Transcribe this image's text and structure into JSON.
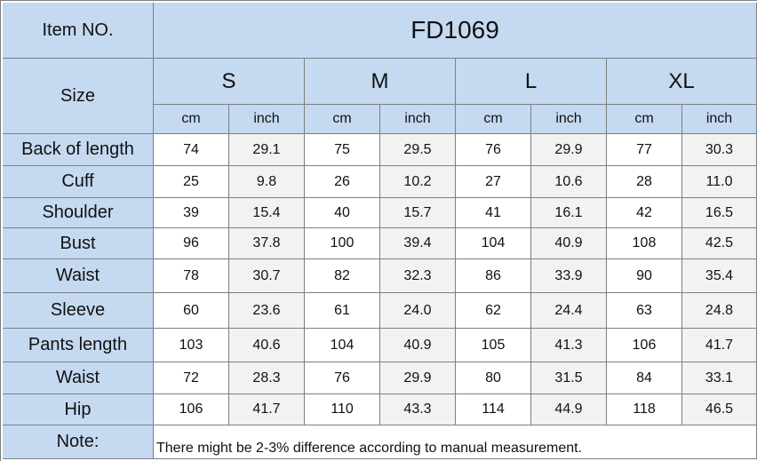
{
  "header": {
    "item_label": "Item NO.",
    "item_value": "FD1069",
    "size_label": "Size",
    "sizes": [
      "S",
      "M",
      "L",
      "XL"
    ],
    "units": [
      "cm",
      "inch",
      "cm",
      "inch",
      "cm",
      "inch",
      "cm",
      "inch"
    ]
  },
  "table": {
    "rows": [
      {
        "label": "Back of length",
        "values": [
          "74",
          "29.1",
          "75",
          "29.5",
          "76",
          "29.9",
          "77",
          "30.3"
        ]
      },
      {
        "label": "Cuff",
        "values": [
          "25",
          "9.8",
          "26",
          "10.2",
          "27",
          "10.6",
          "28",
          "11.0"
        ]
      },
      {
        "label": "Shoulder",
        "values": [
          "39",
          "15.4",
          "40",
          "15.7",
          "41",
          "16.1",
          "42",
          "16.5"
        ]
      },
      {
        "label": "Bust",
        "values": [
          "96",
          "37.8",
          "100",
          "39.4",
          "104",
          "40.9",
          "108",
          "42.5"
        ]
      },
      {
        "label": "Waist",
        "values": [
          "78",
          "30.7",
          "82",
          "32.3",
          "86",
          "33.9",
          "90",
          "35.4"
        ]
      },
      {
        "label": "Sleeve",
        "values": [
          "60",
          "23.6",
          "61",
          "24.0",
          "62",
          "24.4",
          "63",
          "24.8"
        ]
      },
      {
        "label": "Pants length",
        "values": [
          "103",
          "40.6",
          "104",
          "40.9",
          "105",
          "41.3",
          "106",
          "41.7"
        ]
      },
      {
        "label": "Waist",
        "values": [
          "72",
          "28.3",
          "76",
          "29.9",
          "80",
          "31.5",
          "84",
          "33.1"
        ]
      },
      {
        "label": "Hip",
        "values": [
          "106",
          "41.7",
          "110",
          "43.3",
          "114",
          "44.9",
          "118",
          "46.5"
        ]
      }
    ]
  },
  "note": {
    "label": "Note:",
    "text": "There might be 2-3% difference according to manual measurement."
  }
}
